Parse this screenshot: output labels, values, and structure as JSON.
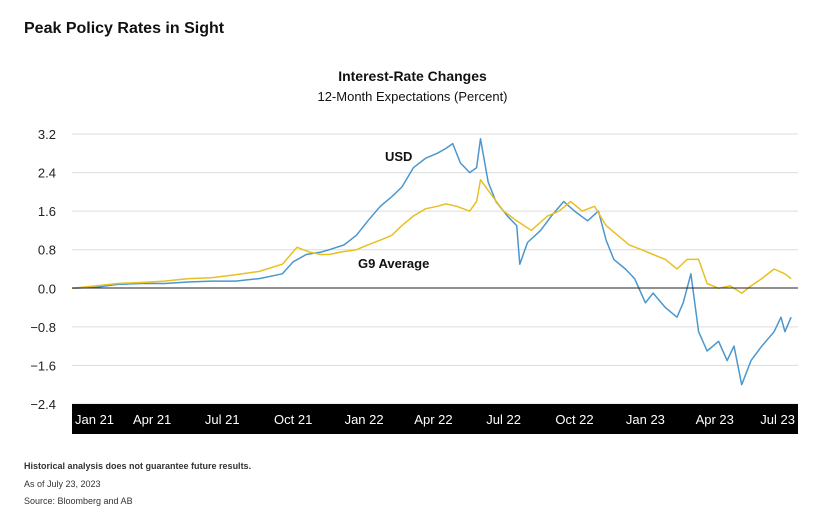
{
  "page": {
    "title": "Peak Policy Rates in Sight"
  },
  "chart_data": {
    "type": "line",
    "title": "Interest-Rate Changes",
    "subtitle": "12-Month Expectations (Percent)",
    "ylim": [
      -2.4,
      3.2
    ],
    "yticks": [
      3.2,
      2.4,
      1.6,
      0.8,
      0.0,
      -0.8,
      -1.6,
      -2.4
    ],
    "ytick_labels": [
      "3.2",
      "2.4",
      "1.6",
      "0.8",
      "0.0",
      "−0.8",
      "−1.6",
      "−2.4"
    ],
    "xlim": [
      "2021-01-01",
      "2023-08-01"
    ],
    "xticks": [
      {
        "date": "2021-01-15",
        "label": "Jan 21"
      },
      {
        "date": "2021-04-15",
        "label": "Apr 21"
      },
      {
        "date": "2021-07-15",
        "label": "Jul 21"
      },
      {
        "date": "2021-10-15",
        "label": "Oct 21"
      },
      {
        "date": "2022-01-15",
        "label": "Jan 22"
      },
      {
        "date": "2022-04-15",
        "label": "Apr 22"
      },
      {
        "date": "2022-07-15",
        "label": "Jul 22"
      },
      {
        "date": "2022-10-15",
        "label": "Oct 22"
      },
      {
        "date": "2023-01-15",
        "label": "Jan 23"
      },
      {
        "date": "2023-04-15",
        "label": "Apr 23"
      },
      {
        "date": "2023-07-15",
        "label": "Jul 23"
      }
    ],
    "grid": true,
    "series": [
      {
        "name": "USD",
        "color": "#4a97cf",
        "points": [
          [
            "2021-01-01",
            0.0
          ],
          [
            "2021-02-01",
            0.02
          ],
          [
            "2021-03-01",
            0.08
          ],
          [
            "2021-04-01",
            0.1
          ],
          [
            "2021-05-01",
            0.1
          ],
          [
            "2021-06-01",
            0.13
          ],
          [
            "2021-07-01",
            0.15
          ],
          [
            "2021-08-01",
            0.15
          ],
          [
            "2021-09-01",
            0.2
          ],
          [
            "2021-10-01",
            0.3
          ],
          [
            "2021-10-15",
            0.55
          ],
          [
            "2021-11-01",
            0.7
          ],
          [
            "2021-11-20",
            0.75
          ],
          [
            "2021-12-01",
            0.8
          ],
          [
            "2021-12-20",
            0.9
          ],
          [
            "2022-01-05",
            1.1
          ],
          [
            "2022-01-20",
            1.4
          ],
          [
            "2022-02-05",
            1.7
          ],
          [
            "2022-02-20",
            1.9
          ],
          [
            "2022-03-05",
            2.1
          ],
          [
            "2022-03-20",
            2.5
          ],
          [
            "2022-04-05",
            2.7
          ],
          [
            "2022-04-20",
            2.8
          ],
          [
            "2022-05-01",
            2.9
          ],
          [
            "2022-05-10",
            3.0
          ],
          [
            "2022-05-20",
            2.6
          ],
          [
            "2022-06-01",
            2.4
          ],
          [
            "2022-06-10",
            2.5
          ],
          [
            "2022-06-15",
            3.1
          ],
          [
            "2022-06-25",
            2.2
          ],
          [
            "2022-07-05",
            1.8
          ],
          [
            "2022-07-20",
            1.5
          ],
          [
            "2022-08-01",
            1.3
          ],
          [
            "2022-08-05",
            0.5
          ],
          [
            "2022-08-15",
            0.95
          ],
          [
            "2022-09-01",
            1.2
          ],
          [
            "2022-09-15",
            1.5
          ],
          [
            "2022-10-01",
            1.8
          ],
          [
            "2022-10-15",
            1.6
          ],
          [
            "2022-11-01",
            1.4
          ],
          [
            "2022-11-15",
            1.6
          ],
          [
            "2022-11-25",
            1.0
          ],
          [
            "2022-12-05",
            0.6
          ],
          [
            "2022-12-20",
            0.4
          ],
          [
            "2023-01-01",
            0.2
          ],
          [
            "2023-01-15",
            -0.3
          ],
          [
            "2023-01-25",
            -0.1
          ],
          [
            "2023-02-10",
            -0.4
          ],
          [
            "2023-02-25",
            -0.6
          ],
          [
            "2023-03-05",
            -0.3
          ],
          [
            "2023-03-15",
            0.3
          ],
          [
            "2023-03-25",
            -0.9
          ],
          [
            "2023-04-05",
            -1.3
          ],
          [
            "2023-04-20",
            -1.1
          ],
          [
            "2023-05-01",
            -1.5
          ],
          [
            "2023-05-10",
            -1.2
          ],
          [
            "2023-05-20",
            -2.0
          ],
          [
            "2023-06-01",
            -1.5
          ],
          [
            "2023-06-15",
            -1.2
          ],
          [
            "2023-07-01",
            -0.9
          ],
          [
            "2023-07-10",
            -0.6
          ],
          [
            "2023-07-15",
            -0.9
          ],
          [
            "2023-07-23",
            -0.6
          ]
        ]
      },
      {
        "name": "G9 Average",
        "color": "#e9c021",
        "points": [
          [
            "2021-01-01",
            0.0
          ],
          [
            "2021-02-01",
            0.05
          ],
          [
            "2021-03-01",
            0.1
          ],
          [
            "2021-04-01",
            0.12
          ],
          [
            "2021-05-01",
            0.15
          ],
          [
            "2021-06-01",
            0.2
          ],
          [
            "2021-07-01",
            0.22
          ],
          [
            "2021-08-01",
            0.28
          ],
          [
            "2021-09-01",
            0.35
          ],
          [
            "2021-10-01",
            0.5
          ],
          [
            "2021-10-20",
            0.85
          ],
          [
            "2021-11-05",
            0.75
          ],
          [
            "2021-11-20",
            0.7
          ],
          [
            "2021-12-01",
            0.7
          ],
          [
            "2021-12-15",
            0.75
          ],
          [
            "2022-01-05",
            0.8
          ],
          [
            "2022-01-20",
            0.9
          ],
          [
            "2022-02-05",
            1.0
          ],
          [
            "2022-02-20",
            1.1
          ],
          [
            "2022-03-05",
            1.3
          ],
          [
            "2022-03-20",
            1.5
          ],
          [
            "2022-04-05",
            1.65
          ],
          [
            "2022-04-20",
            1.7
          ],
          [
            "2022-05-01",
            1.75
          ],
          [
            "2022-05-15",
            1.7
          ],
          [
            "2022-06-01",
            1.6
          ],
          [
            "2022-06-10",
            1.8
          ],
          [
            "2022-06-15",
            2.25
          ],
          [
            "2022-07-01",
            1.9
          ],
          [
            "2022-07-15",
            1.6
          ],
          [
            "2022-08-01",
            1.4
          ],
          [
            "2022-08-20",
            1.2
          ],
          [
            "2022-09-10",
            1.5
          ],
          [
            "2022-09-25",
            1.6
          ],
          [
            "2022-10-10",
            1.8
          ],
          [
            "2022-10-25",
            1.6
          ],
          [
            "2022-11-10",
            1.7
          ],
          [
            "2022-11-25",
            1.3
          ],
          [
            "2022-12-10",
            1.1
          ],
          [
            "2022-12-25",
            0.9
          ],
          [
            "2023-01-10",
            0.8
          ],
          [
            "2023-01-25",
            0.7
          ],
          [
            "2023-02-10",
            0.6
          ],
          [
            "2023-02-25",
            0.4
          ],
          [
            "2023-03-10",
            0.6
          ],
          [
            "2023-03-25",
            0.6
          ],
          [
            "2023-04-05",
            0.1
          ],
          [
            "2023-04-20",
            0.0
          ],
          [
            "2023-05-05",
            0.05
          ],
          [
            "2023-05-20",
            -0.1
          ],
          [
            "2023-06-01",
            0.05
          ],
          [
            "2023-06-15",
            0.2
          ],
          [
            "2023-07-01",
            0.4
          ],
          [
            "2023-07-15",
            0.3
          ],
          [
            "2023-07-23",
            0.2
          ]
        ]
      }
    ],
    "annotations": [
      {
        "text": "USD",
        "series": "USD"
      },
      {
        "text": "G9 Average",
        "series": "G9 Average"
      }
    ]
  },
  "footnotes": {
    "disclaimer": "Historical analysis does not guarantee future results.",
    "as_of": "As of July 23, 2023",
    "source": "Source: Bloomberg and AB"
  }
}
